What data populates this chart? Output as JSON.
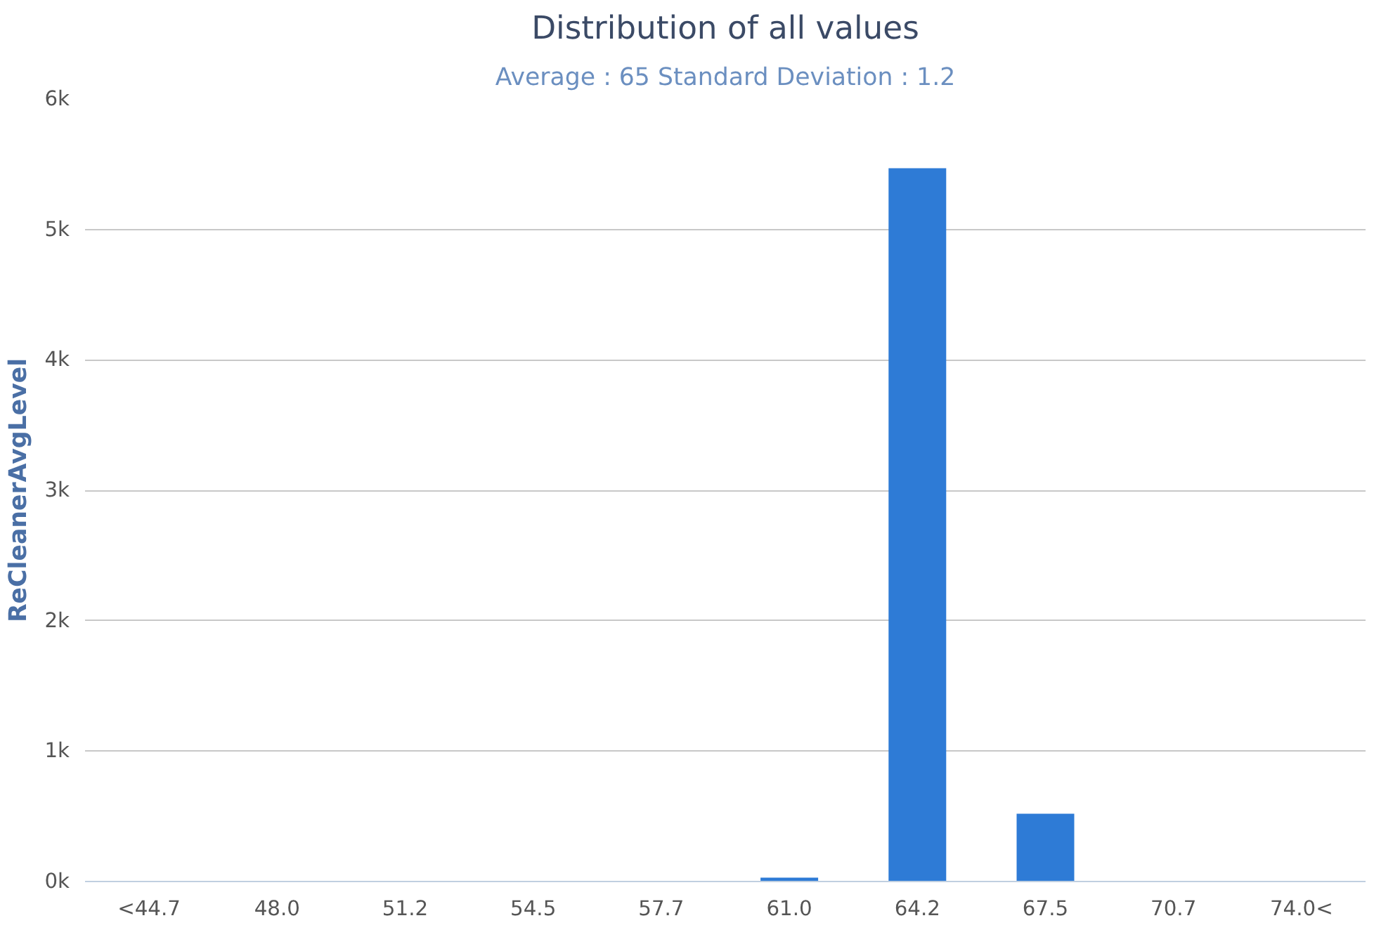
{
  "chart_data": {
    "type": "bar",
    "title": "Distribution of all values",
    "subtitle": "Average : 65 Standard Deviation : 1.2",
    "ylabel": "ReCleanerAvgLevel",
    "categories": [
      "<44.7",
      "48.0",
      "51.2",
      "54.5",
      "57.7",
      "61.0",
      "64.2",
      "67.5",
      "70.7",
      "74.0<"
    ],
    "values": [
      0,
      0,
      0,
      0,
      0,
      30,
      5470,
      520,
      0,
      0
    ],
    "color": "#2e7bd6",
    "ylim": [
      0,
      6000
    ],
    "yticks": [
      {
        "value": 0,
        "label": "0k"
      },
      {
        "value": 1000,
        "label": "1k"
      },
      {
        "value": 2000,
        "label": "2k"
      },
      {
        "value": 3000,
        "label": "3k"
      },
      {
        "value": 4000,
        "label": "4k"
      },
      {
        "value": 5000,
        "label": "5k"
      },
      {
        "value": 6000,
        "label": "6k"
      }
    ],
    "grid": "y"
  }
}
